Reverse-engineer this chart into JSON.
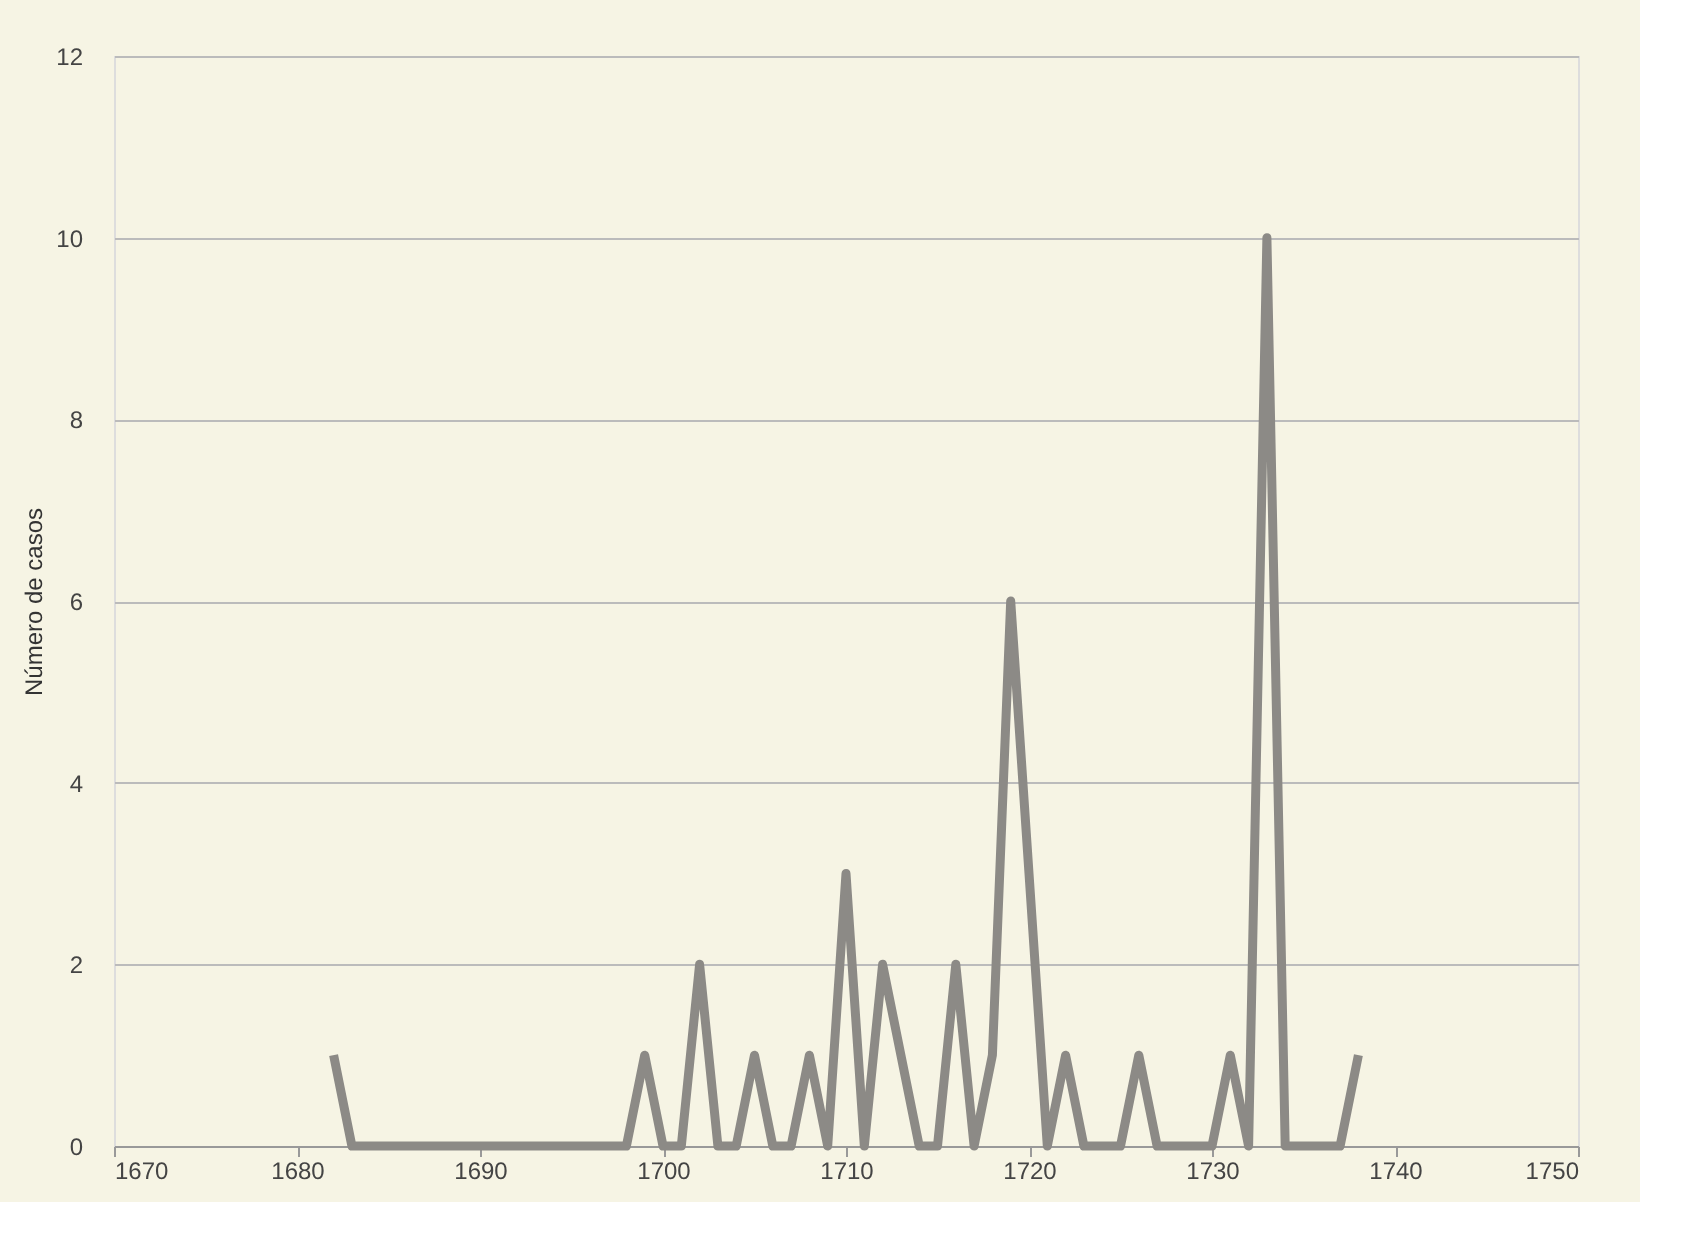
{
  "chart_data": {
    "type": "line",
    "ylabel": "Número de casos",
    "x": [
      1682,
      1683,
      1684,
      1685,
      1686,
      1687,
      1688,
      1689,
      1690,
      1691,
      1692,
      1693,
      1694,
      1695,
      1696,
      1697,
      1698,
      1699,
      1700,
      1701,
      1702,
      1703,
      1704,
      1705,
      1706,
      1707,
      1708,
      1709,
      1710,
      1711,
      1712,
      1713,
      1714,
      1715,
      1716,
      1717,
      1718,
      1719,
      1720,
      1721,
      1722,
      1723,
      1724,
      1725,
      1726,
      1727,
      1728,
      1729,
      1730,
      1731,
      1732,
      1733,
      1734,
      1735,
      1736,
      1737,
      1738
    ],
    "series": [
      {
        "color": "#8c8a86",
        "values": [
          1,
          0,
          0,
          0,
          0,
          0,
          0,
          0,
          0,
          0,
          0,
          0,
          0,
          0,
          0,
          0,
          0,
          1,
          0,
          0,
          2,
          0,
          0,
          1,
          0,
          0,
          1,
          0,
          3,
          0,
          2,
          1,
          0,
          0,
          2,
          0,
          1,
          6,
          3,
          0,
          1,
          0,
          0,
          0,
          1,
          0,
          0,
          0,
          0,
          1,
          0,
          10,
          0,
          0,
          0,
          0,
          1
        ]
      }
    ],
    "xlim": [
      1670,
      1750
    ],
    "xticks": [
      1670,
      1680,
      1690,
      1700,
      1710,
      1720,
      1730,
      1740,
      1750
    ],
    "ylim": [
      0,
      12
    ],
    "yticks": [
      0,
      2,
      4,
      6,
      8,
      10,
      12
    ],
    "grid": "y",
    "marker": "none",
    "line_style": "solid"
  }
}
